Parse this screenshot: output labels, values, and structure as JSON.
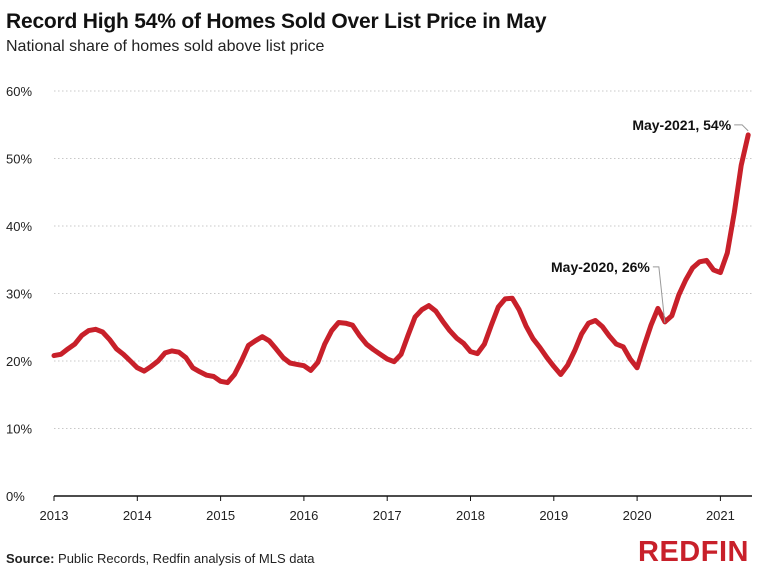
{
  "chart_data": {
    "type": "line",
    "title": "Record High 54% of Homes Sold Over List Price in May",
    "subtitle": "National share of homes sold above list price",
    "xlabel": "",
    "ylabel": "",
    "ylim": [
      0,
      60
    ],
    "yticks": [
      "0%",
      "10%",
      "20%",
      "30%",
      "40%",
      "50%",
      "60%"
    ],
    "xticks": [
      "2013",
      "2014",
      "2015",
      "2016",
      "2017",
      "2018",
      "2019",
      "2020",
      "2021"
    ],
    "grid": "horizontal dotted",
    "line_color": "#c8202a",
    "x_start": "2013-01",
    "x_end": "2021-05",
    "frequency": "monthly",
    "values": [
      20.8,
      21.0,
      21.8,
      22.5,
      23.8,
      24.5,
      24.7,
      24.3,
      23.2,
      21.8,
      21.0,
      20.0,
      19.0,
      18.5,
      19.2,
      20.0,
      21.2,
      21.5,
      21.3,
      20.5,
      19.0,
      18.4,
      17.9,
      17.7,
      17.0,
      16.8,
      18.0,
      20.0,
      22.3,
      23.0,
      23.6,
      23.0,
      21.8,
      20.5,
      19.7,
      19.5,
      19.3,
      18.6,
      19.8,
      22.5,
      24.5,
      25.7,
      25.6,
      25.3,
      23.8,
      22.5,
      21.7,
      21.0,
      20.3,
      19.9,
      21.0,
      23.8,
      26.5,
      27.6,
      28.2,
      27.4,
      25.9,
      24.5,
      23.4,
      22.6,
      21.4,
      21.1,
      22.5,
      25.3,
      28.0,
      29.2,
      29.3,
      27.6,
      25.2,
      23.3,
      22.0,
      20.5,
      19.2,
      18.0,
      19.4,
      21.5,
      24.0,
      25.6,
      26.0,
      25.1,
      23.7,
      22.5,
      22.1,
      20.3,
      19.0,
      22.2,
      25.3,
      27.8,
      25.8,
      26.7,
      29.8,
      32.0,
      33.8,
      34.7,
      34.9,
      33.5,
      33.1,
      36.0,
      42.0,
      49.0,
      53.5
    ],
    "annotations": [
      {
        "label": "May-2021, 54%",
        "month": "2021-05"
      },
      {
        "label": "May-2020, 26%",
        "month": "2020-05"
      }
    ]
  },
  "footer": {
    "source_label": "Source:",
    "source_text": " Public Records, Redfin analysis of MLS data",
    "logo": "REDFIN"
  }
}
